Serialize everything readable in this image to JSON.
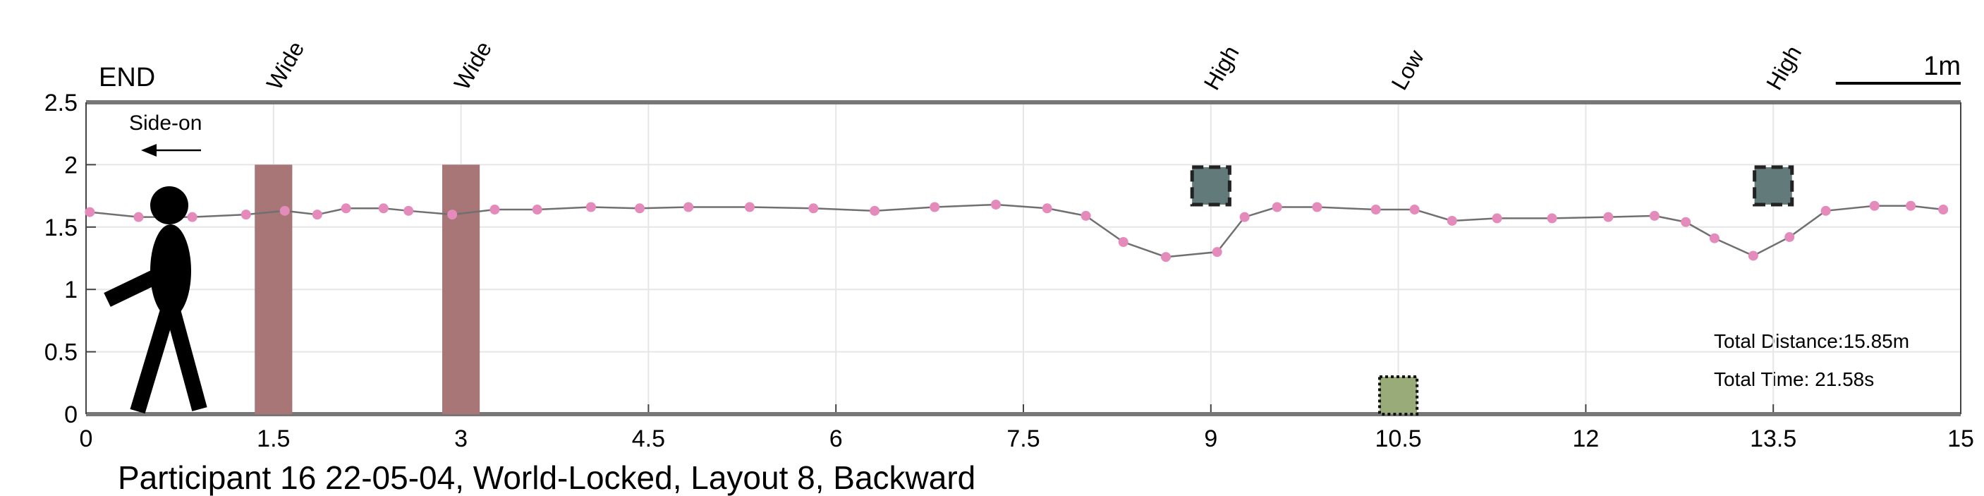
{
  "chart_data": {
    "type": "line",
    "x": [
      0.03,
      0.42,
      0.85,
      1.28,
      1.59,
      1.85,
      2.08,
      2.38,
      2.58,
      2.93,
      3.27,
      3.61,
      4.04,
      4.43,
      4.82,
      5.31,
      5.82,
      6.31,
      6.79,
      7.28,
      7.69,
      8.0,
      8.3,
      8.64,
      9.05,
      9.27,
      9.53,
      9.85,
      10.32,
      10.63,
      10.93,
      11.29,
      11.73,
      12.18,
      12.55,
      12.8,
      13.03,
      13.34,
      13.63,
      13.92,
      14.31,
      14.6,
      14.86
    ],
    "values": [
      1.62,
      1.58,
      1.58,
      1.6,
      1.63,
      1.6,
      1.65,
      1.65,
      1.63,
      1.6,
      1.64,
      1.64,
      1.66,
      1.65,
      1.66,
      1.66,
      1.65,
      1.63,
      1.66,
      1.68,
      1.65,
      1.59,
      1.38,
      1.26,
      1.3,
      1.58,
      1.66,
      1.66,
      1.64,
      1.64,
      1.55,
      1.57,
      1.57,
      1.58,
      1.59,
      1.54,
      1.41,
      1.27,
      1.42,
      1.63,
      1.67,
      1.67,
      1.64
    ],
    "color": "#707070",
    "marker_color": "#e48bbb",
    "xlim": [
      0,
      15
    ],
    "xticks": [
      0,
      1.5,
      3,
      4.5,
      6,
      7.5,
      9,
      10.5,
      12,
      13.5,
      15
    ],
    "ylim": [
      0,
      2.5
    ],
    "yticks": [
      0,
      0.5,
      1,
      1.5,
      2,
      2.5
    ],
    "grid": true,
    "obstacles": [
      {
        "label": "Wide",
        "x": [
          1.35,
          1.65
        ],
        "y": [
          0,
          2
        ],
        "color": "#a87676"
      },
      {
        "label": "Wide",
        "x": [
          2.85,
          3.15
        ],
        "y": [
          0,
          2
        ],
        "color": "#a87676"
      },
      {
        "label": "High",
        "x": [
          8.85,
          9.15
        ],
        "y": [
          1.68,
          1.98
        ],
        "color": "#627a7a"
      },
      {
        "label": "Low",
        "x": [
          10.35,
          10.65
        ],
        "y": [
          0,
          0.3
        ],
        "color": "#9aab7a"
      },
      {
        "label": "High",
        "x": [
          13.35,
          13.65
        ],
        "y": [
          1.68,
          1.98
        ],
        "color": "#627a7a"
      }
    ],
    "end_label": "END",
    "direction_label": "Side-on",
    "scale_bar": {
      "label": "1m",
      "length": 1
    },
    "total_distance": "Total Distance:15.85m",
    "total_time": "Total Time: 21.58s",
    "title": "Participant 16 22-05-04, World-Locked, Layout 8, Backward"
  }
}
